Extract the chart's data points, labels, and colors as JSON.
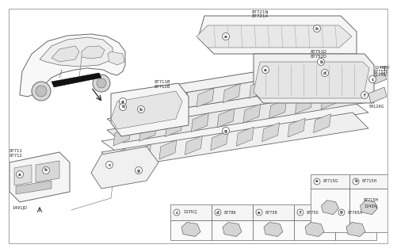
{
  "bg_color": "#ffffff",
  "line_color": "#666666",
  "dark_line": "#333333",
  "fill_light": "#f0f0f0",
  "fill_mid": "#e0e0e0",
  "fill_dark": "#cccccc",
  "fill_white": "#fafafa",
  "label_color": "#222222",
  "car_fill": "#f5f5f5",
  "sill_top_color": "#e8e8e8",
  "sill_mid_color": "#f0f0f0",
  "sill_bot_color": "#f8f8f8",
  "labels": {
    "87721N_87721A": "87721N\n87721A",
    "87711B_87712B": "87711B\n87712B",
    "87751D_87752D": "87751D\n87752D",
    "1249BD": "1249BD",
    "87755B_87756G": "87755B\n87756G",
    "84126G": "84126G",
    "87711_87712": "87711\n87712",
    "1491JD": "1491JD",
    "87715G": "87715G",
    "87715H": "87715H",
    "1243AJ": "1243AJ",
    "1335CJ": "1335CJ",
    "87786": "87786",
    "87758": "87758",
    "87750": "87750",
    "87765A": "87765A"
  },
  "bottom_parts": [
    "1335CJ",
    "87786",
    "87758",
    "87750",
    "87765A"
  ],
  "bottom_circles": [
    "c",
    "d",
    "e",
    "f",
    "g"
  ]
}
